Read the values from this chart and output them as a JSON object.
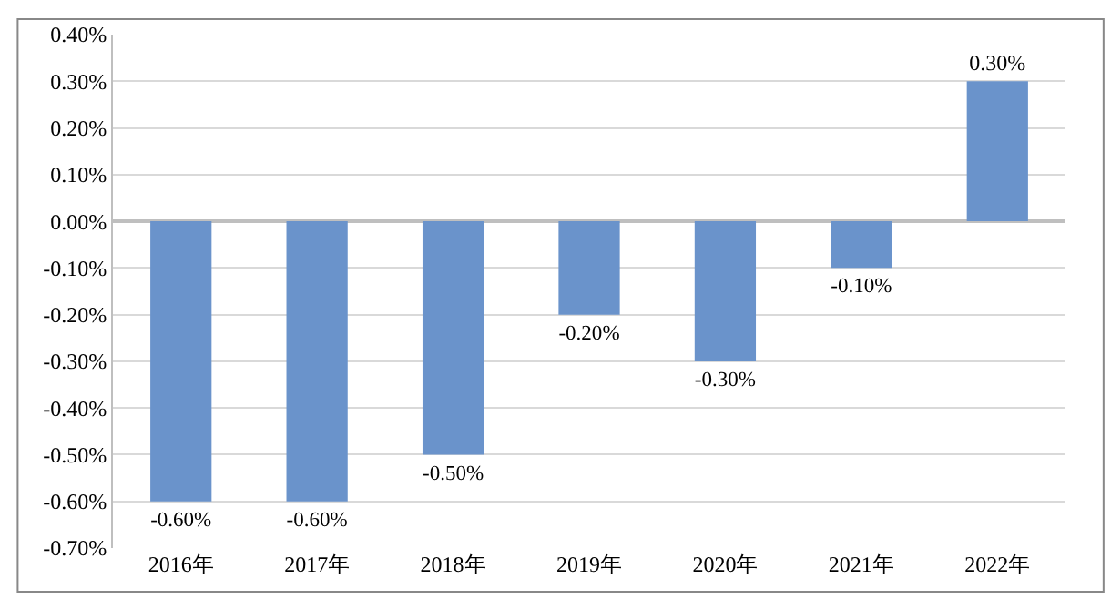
{
  "chart_data": {
    "type": "bar",
    "categories": [
      "2016年",
      "2017年",
      "2018年",
      "2019年",
      "2020年",
      "2021年",
      "2022年"
    ],
    "values": [
      -0.6,
      -0.6,
      -0.5,
      -0.2,
      -0.3,
      -0.1,
      0.3
    ],
    "value_labels": [
      "-0.60%",
      "-0.60%",
      "-0.50%",
      "-0.20%",
      "-0.30%",
      "-0.10%",
      "0.30%"
    ],
    "color": "#6a93cb",
    "ylim": [
      -0.7,
      0.4
    ],
    "yticks": [
      {
        "value": 0.4,
        "label": "0.40%"
      },
      {
        "value": 0.3,
        "label": "0.30%"
      },
      {
        "value": 0.2,
        "label": "0.20%"
      },
      {
        "value": 0.1,
        "label": "0.10%"
      },
      {
        "value": 0.0,
        "label": "0.00%"
      },
      {
        "value": -0.1,
        "label": "-0.10%"
      },
      {
        "value": -0.2,
        "label": "-0.20%"
      },
      {
        "value": -0.3,
        "label": "-0.30%"
      },
      {
        "value": -0.4,
        "label": "-0.40%"
      },
      {
        "value": -0.5,
        "label": "-0.50%"
      },
      {
        "value": -0.6,
        "label": "-0.60%"
      },
      {
        "value": -0.7,
        "label": "-0.70%"
      }
    ],
    "grid": "y",
    "legend": false
  }
}
